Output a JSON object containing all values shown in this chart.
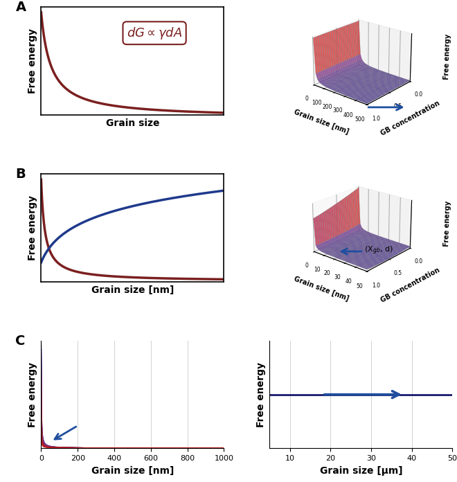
{
  "panel_A_left": {
    "xlabel": "Grain size",
    "ylabel": "Free energy",
    "formula_text": "$dG \\propto \\gamma dA$",
    "curve_color": "#7B2020"
  },
  "panel_A_right": {
    "xlabel": "Grain size [nm]",
    "ylabel": "Free energy",
    "gb_label": "GB concentration",
    "xticks": [
      0,
      100,
      200,
      300,
      400,
      500
    ],
    "yticks": [
      0.0,
      0.5,
      1.0
    ],
    "arrow_color": "#1F4E9E"
  },
  "panel_B_left": {
    "xlabel": "Grain size [nm]",
    "ylabel": "Free energy",
    "curve1_color": "#7B2020",
    "curve2_color": "#1F3A8C"
  },
  "panel_B_right": {
    "xlabel": "Grain size [nm]",
    "ylabel": "Free energy",
    "gb_label": "GB concentration",
    "xticks": [
      0,
      10,
      20,
      30,
      40,
      50
    ],
    "yticks": [
      0.0,
      0.5,
      1.0
    ],
    "annotation": "(X$_{gb}$, d)",
    "arrow_color": "#1F4E9E"
  },
  "panel_C_left": {
    "xlabel": "Grain size [nm]",
    "ylabel": "Free energy",
    "xticks": [
      0,
      200,
      400,
      600,
      800,
      1000
    ],
    "arrow_color": "#1F4E9E"
  },
  "panel_C_right": {
    "xlabel": "Grain size [μm]",
    "ylabel": "Free energy",
    "xticks": [
      10,
      20,
      30,
      40,
      50
    ],
    "arrow_color": "#1F4E9E"
  },
  "background_color": "#FFFFFF"
}
